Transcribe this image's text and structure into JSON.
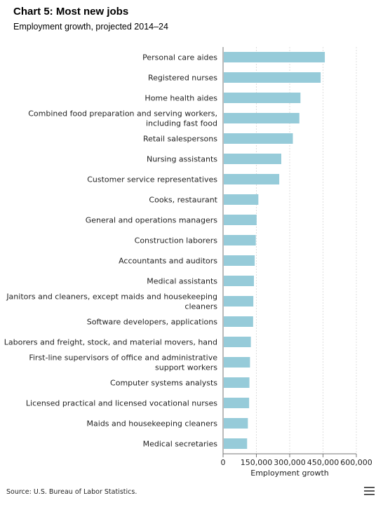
{
  "header": {
    "title": "Chart 5: Most new jobs",
    "subtitle": "Employment growth, projected 2014–24"
  },
  "footer": {
    "source": "Source: U.S. Bureau of Labor Statistics."
  },
  "menu": {
    "icon": "hamburger-menu-icon"
  },
  "chart_data": {
    "type": "bar",
    "orientation": "horizontal",
    "categories": [
      "Personal care aides",
      "Registered nurses",
      "Home health aides",
      "Combined food preparation and serving workers, including fast food",
      "Retail salespersons",
      "Nursing assistants",
      "Customer service representatives",
      "Cooks, restaurant",
      "General and operations managers",
      "Construction laborers",
      "Accountants and auditors",
      "Medical assistants",
      "Janitors and cleaners, except maids and housekeeping cleaners",
      "Software developers, applications",
      "Laborers and freight, stock, and material movers, hand",
      "First-line supervisors of office and administrative support workers",
      "Computer systems analysts",
      "Licensed practical and licensed vocational nurses",
      "Maids and housekeeping cleaners",
      "Medical secretaries"
    ],
    "category_lines": [
      [
        "Personal care aides"
      ],
      [
        "Registered nurses"
      ],
      [
        "Home health aides"
      ],
      [
        "Combined food preparation and serving workers,",
        "including fast food"
      ],
      [
        "Retail salespersons"
      ],
      [
        "Nursing assistants"
      ],
      [
        "Customer service representatives"
      ],
      [
        "Cooks, restaurant"
      ],
      [
        "General and operations managers"
      ],
      [
        "Construction laborers"
      ],
      [
        "Accountants and auditors"
      ],
      [
        "Medical assistants"
      ],
      [
        "Janitors and cleaners, except maids and housekeeping",
        "cleaners"
      ],
      [
        "Software developers, applications"
      ],
      [
        "Laborers and freight, stock, and material movers, hand"
      ],
      [
        "First-line supervisors of office and administrative",
        "support workers"
      ],
      [
        "Computer systems analysts"
      ],
      [
        "Licensed practical and licensed vocational nurses"
      ],
      [
        "Maids and housekeeping cleaners"
      ],
      [
        "Medical secretaries"
      ]
    ],
    "values": [
      458100,
      439300,
      348400,
      343500,
      314200,
      262000,
      252900,
      158900,
      151100,
      147400,
      142400,
      138900,
      136300,
      135300,
      125100,
      121200,
      118600,
      117300,
      111700,
      108200
    ],
    "title": "Chart 5: Most new jobs",
    "subtitle": "Employment growth, projected 2014–24",
    "xlabel": "Employment growth",
    "ylabel": "",
    "xlim": [
      0,
      600000
    ],
    "ticks": [
      0,
      150000,
      300000,
      450000,
      600000
    ],
    "tick_labels": [
      "0",
      "150,000",
      "300,000",
      "450,000",
      "600,000"
    ],
    "grid": true,
    "legend": "none",
    "bar_color": "#96cbd9",
    "grid_color": "#dddddd"
  }
}
